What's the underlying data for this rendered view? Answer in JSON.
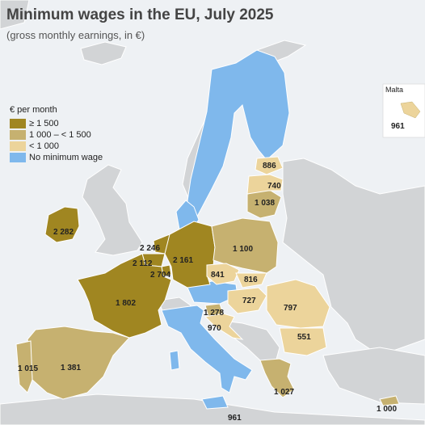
{
  "title": "Minimum wages in the EU, July 2025",
  "subtitle": "(gross monthly earnings, in €)",
  "legend": {
    "title": "€ per month",
    "items": [
      {
        "label": "≥ 1 500",
        "color": "#a08621"
      },
      {
        "label": "1 000 – < 1 500",
        "color": "#c6b170"
      },
      {
        "label": "< 1 000",
        "color": "#ecd49b"
      },
      {
        "label": "No minimum wage",
        "color": "#7fb8ec"
      }
    ]
  },
  "colors": {
    "sea": "#eef1f4",
    "land_other": "#d2d4d6",
    "border": "#ffffff"
  },
  "inset": {
    "label": "Malta",
    "value": "961"
  },
  "values": {
    "ireland": "2 282",
    "netherlands": "2 246",
    "belgium": "2 112",
    "luxembourg": "2 704",
    "germany": "2 161",
    "france": "1 802",
    "spain": "1 381",
    "portugal": "1 015",
    "slovenia": "1 278",
    "croatia": "970",
    "czechia": "841",
    "slovakia": "816",
    "hungary": "727",
    "romania": "797",
    "bulgaria": "551",
    "poland": "1 100",
    "estonia": "886",
    "latvia": "740",
    "lithuania": "1 038",
    "greece": "1 027",
    "cyprus": "1 000",
    "malta_bottom": "961"
  }
}
